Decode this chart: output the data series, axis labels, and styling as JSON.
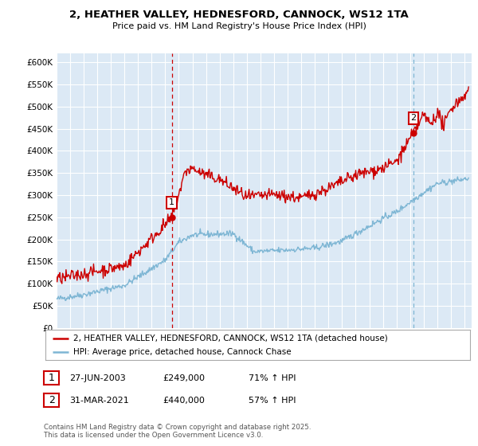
{
  "title_line1": "2, HEATHER VALLEY, HEDNESFORD, CANNOCK, WS12 1TA",
  "title_line2": "Price paid vs. HM Land Registry's House Price Index (HPI)",
  "ylim": [
    0,
    620000
  ],
  "yticks": [
    0,
    50000,
    100000,
    150000,
    200000,
    250000,
    300000,
    350000,
    400000,
    450000,
    500000,
    550000,
    600000
  ],
  "x_start_year": 1995,
  "x_end_year": 2025,
  "red_color": "#cc0000",
  "blue_color": "#7eb6d4",
  "plot_bg_color": "#dce9f5",
  "marker1_year": 2003.49,
  "marker1_value": 249000,
  "marker2_year": 2021.25,
  "marker2_value": 440000,
  "legend_entry1": "2, HEATHER VALLEY, HEDNESFORD, CANNOCK, WS12 1TA (detached house)",
  "legend_entry2": "HPI: Average price, detached house, Cannock Chase",
  "footnote": "Contains HM Land Registry data © Crown copyright and database right 2025.\nThis data is licensed under the Open Government Licence v3.0.",
  "table_row1_label": "1",
  "table_row1_date": "27-JUN-2003",
  "table_row1_price": "£249,000",
  "table_row1_hpi": "71% ↑ HPI",
  "table_row2_label": "2",
  "table_row2_date": "31-MAR-2021",
  "table_row2_price": "£440,000",
  "table_row2_hpi": "57% ↑ HPI",
  "bg_color": "#ffffff",
  "grid_color": "#ffffff"
}
